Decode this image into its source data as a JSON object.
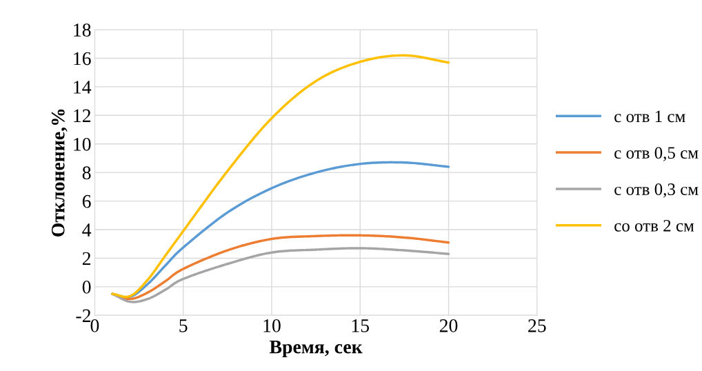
{
  "chart_data": {
    "type": "line",
    "xlabel": "Время, сек",
    "ylabel": "Отклонение,%",
    "x": [
      1,
      2,
      3,
      4,
      5,
      7.5,
      10,
      12.5,
      15,
      17.5,
      20
    ],
    "series": [
      {
        "name": "с отв 1 см",
        "color": "#5b9bd5",
        "values": [
          -0.5,
          -0.7,
          0.2,
          1.5,
          2.75,
          5.2,
          6.9,
          8.0,
          8.6,
          8.7,
          8.4
        ]
      },
      {
        "name": "с отв 0,5 см",
        "color": "#ed7d31",
        "values": [
          -0.5,
          -0.85,
          -0.4,
          0.4,
          1.25,
          2.55,
          3.35,
          3.55,
          3.6,
          3.45,
          3.1
        ]
      },
      {
        "name": "с отв 0,3 см",
        "color": "#a5a5a5",
        "values": [
          -0.5,
          -1.05,
          -0.85,
          -0.2,
          0.55,
          1.6,
          2.4,
          2.6,
          2.7,
          2.55,
          2.3
        ]
      },
      {
        "name": "со отв 2 см",
        "color": "#ffc000",
        "values": [
          -0.5,
          -0.65,
          0.5,
          2.2,
          3.9,
          8.1,
          11.8,
          14.4,
          15.75,
          16.2,
          15.7
        ]
      }
    ],
    "xlim": [
      0,
      25
    ],
    "xticks": [
      0,
      5,
      10,
      15,
      20,
      25
    ],
    "ylim": [
      -2,
      18
    ],
    "yticks": [
      -2,
      0,
      2,
      4,
      6,
      8,
      10,
      12,
      14,
      16,
      18
    ],
    "grid": true,
    "legend": "right",
    "marker": "none",
    "line_style": "solid"
  }
}
